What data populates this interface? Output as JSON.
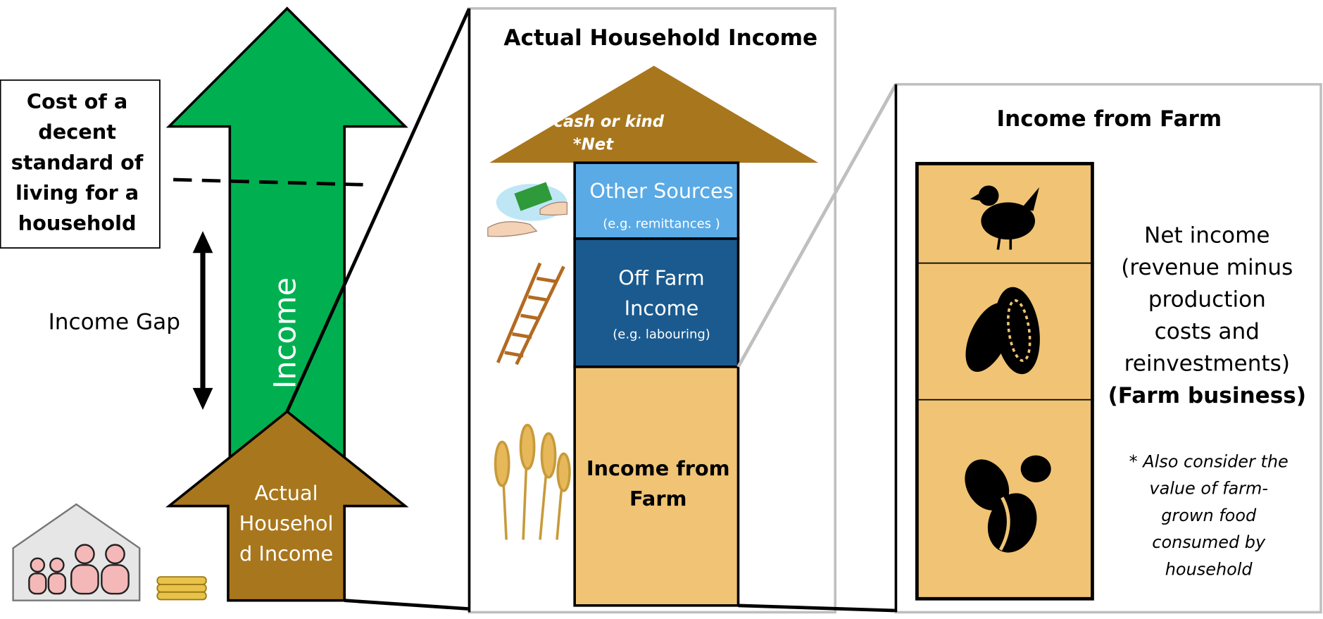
{
  "left": {
    "cost_label": [
      "Cost of a",
      "decent",
      "standard of",
      "living for a",
      "household"
    ],
    "income_gap": "Income Gap",
    "income_arrow": "Income",
    "actual_arrow": [
      "Actual",
      "Househol",
      "d Income"
    ]
  },
  "middle": {
    "title": "Actual Household Income",
    "notes": [
      "*In cash or kind",
      "*Net"
    ],
    "other_sources": [
      "Other Sources",
      "(e.g. remittances )"
    ],
    "off_farm": [
      "Off Farm",
      "Income",
      "(e.g. labouring)"
    ],
    "farm": [
      "Income from",
      "Farm"
    ]
  },
  "right": {
    "title": "Income from Farm",
    "net_income": [
      "Net income",
      "(revenue minus",
      "production",
      "costs and",
      "reinvestments)",
      "(Farm business)"
    ],
    "footnote": [
      "* Also consider the",
      "value of farm-",
      "grown food",
      "consumed by",
      "household"
    ]
  }
}
